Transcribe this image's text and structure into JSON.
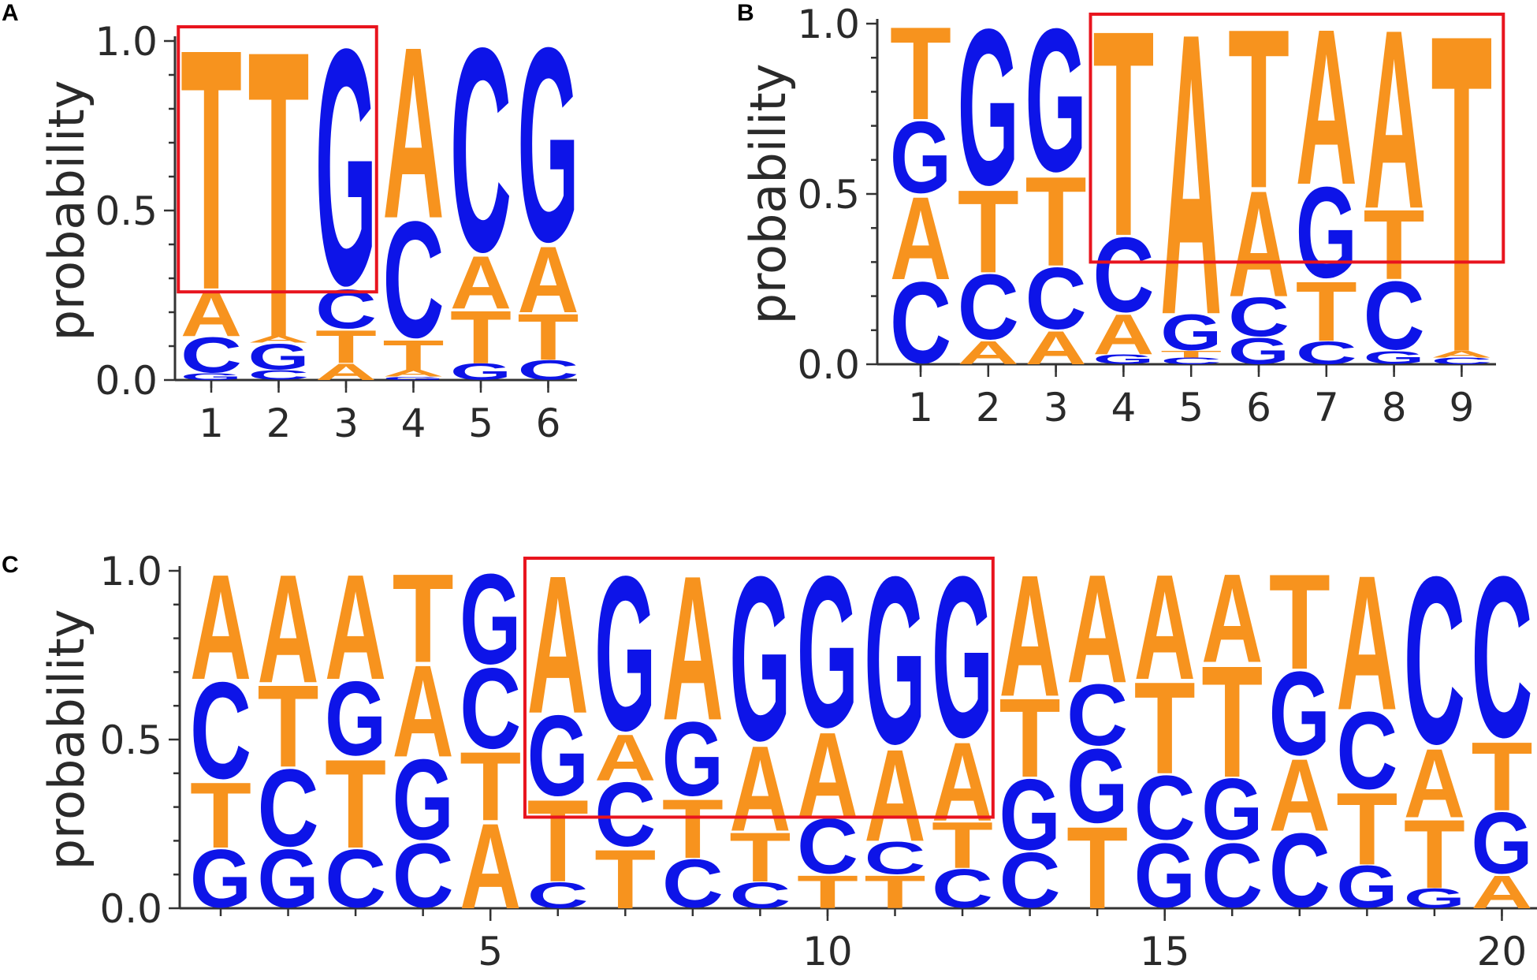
{
  "colors": {
    "A": "#f7931e",
    "T": "#f7931e",
    "G": "#0d14e8",
    "C": "#0d14e8",
    "highlight": "#e8141e"
  },
  "chart_data": [
    {
      "panel": "A",
      "type": "sequence_logo",
      "ylabel": "probability",
      "ylim": [
        0.0,
        1.0
      ],
      "yticks": [
        "0.0",
        "0.5",
        "1.0"
      ],
      "xticks": [
        "1",
        "2",
        "3",
        "4",
        "5",
        "6"
      ],
      "highlight": {
        "positions": [
          1,
          3
        ],
        "ymin": 0.26
      },
      "positions": [
        [
          [
            "G",
            0.02
          ],
          [
            "C",
            0.11
          ],
          [
            "A",
            0.14
          ],
          [
            "T",
            0.73
          ]
        ],
        [
          [
            "C",
            0.03
          ],
          [
            "G",
            0.08
          ],
          [
            "A",
            0.02
          ],
          [
            "T",
            0.87
          ]
        ],
        [
          [
            "A",
            0.05
          ],
          [
            "T",
            0.1
          ],
          [
            "C",
            0.12
          ],
          [
            "G",
            0.73
          ]
        ],
        [
          [
            "G",
            0.01
          ],
          [
            "A",
            0.02
          ],
          [
            "T",
            0.09
          ],
          [
            "C",
            0.36
          ],
          [
            "A",
            0.52
          ]
        ],
        [
          [
            "G",
            0.05
          ],
          [
            "T",
            0.16
          ],
          [
            "A",
            0.16
          ],
          [
            "C",
            0.63
          ]
        ],
        [
          [
            "C",
            0.06
          ],
          [
            "T",
            0.14
          ],
          [
            "A",
            0.2
          ],
          [
            "G",
            0.6
          ]
        ]
      ]
    },
    {
      "panel": "B",
      "type": "sequence_logo",
      "ylabel": "probability",
      "ylim": [
        0.0,
        1.0
      ],
      "yticks": [
        "0.0",
        "0.5",
        "1.0"
      ],
      "xticks": [
        "1",
        "2",
        "3",
        "4",
        "5",
        "6",
        "7",
        "8",
        "9"
      ],
      "highlight": {
        "positions": [
          4,
          9
        ],
        "ymin": 0.3
      },
      "positions": [
        [
          [
            "C",
            0.25
          ],
          [
            "A",
            0.25
          ],
          [
            "G",
            0.22
          ],
          [
            "T",
            0.28
          ]
        ],
        [
          [
            "A",
            0.07
          ],
          [
            "C",
            0.2
          ],
          [
            "T",
            0.25
          ],
          [
            "G",
            0.48
          ]
        ],
        [
          [
            "A",
            0.1
          ],
          [
            "C",
            0.19
          ],
          [
            "T",
            0.27
          ],
          [
            "G",
            0.44
          ]
        ],
        [
          [
            "G",
            0.03
          ],
          [
            "A",
            0.12
          ],
          [
            "C",
            0.23
          ],
          [
            "T",
            0.62
          ]
        ],
        [
          [
            "C",
            0.02
          ],
          [
            "T",
            0.02
          ],
          [
            "G",
            0.11
          ],
          [
            "A",
            0.85
          ]
        ],
        [
          [
            "G",
            0.08
          ],
          [
            "C",
            0.12
          ],
          [
            "A",
            0.32
          ],
          [
            "T",
            0.48
          ]
        ],
        [
          [
            "C",
            0.07
          ],
          [
            "T",
            0.18
          ],
          [
            "G",
            0.28
          ],
          [
            "A",
            0.47
          ]
        ],
        [
          [
            "G",
            0.04
          ],
          [
            "C",
            0.21
          ],
          [
            "T",
            0.21
          ],
          [
            "A",
            0.54
          ]
        ],
        [
          [
            "C",
            0.02
          ],
          [
            "A",
            0.02
          ],
          [
            "T",
            0.96
          ]
        ]
      ]
    },
    {
      "panel": "C",
      "type": "sequence_logo",
      "ylabel": "probability",
      "ylim": [
        0.0,
        1.0
      ],
      "yticks": [
        "0.0",
        "0.5",
        "1.0"
      ],
      "xticks": [
        "5",
        "10",
        "15",
        "20"
      ],
      "highlight": {
        "positions": [
          6,
          12
        ],
        "ymin": 0.27
      },
      "positions": [
        [
          [
            "G",
            0.18
          ],
          [
            "T",
            0.2
          ],
          [
            "C",
            0.3
          ],
          [
            "A",
            0.32
          ]
        ],
        [
          [
            "G",
            0.18
          ],
          [
            "C",
            0.24
          ],
          [
            "T",
            0.25
          ],
          [
            "A",
            0.33
          ]
        ],
        [
          [
            "C",
            0.18
          ],
          [
            "T",
            0.27
          ],
          [
            "G",
            0.23
          ],
          [
            "A",
            0.32
          ]
        ],
        [
          [
            "C",
            0.2
          ],
          [
            "G",
            0.25
          ],
          [
            "A",
            0.28
          ],
          [
            "T",
            0.27
          ]
        ],
        [
          [
            "A",
            0.26
          ],
          [
            "T",
            0.21
          ],
          [
            "C",
            0.25
          ],
          [
            "G",
            0.28
          ]
        ],
        [
          [
            "C",
            0.08
          ],
          [
            "T",
            0.25
          ],
          [
            "G",
            0.25
          ],
          [
            "A",
            0.42
          ]
        ],
        [
          [
            "T",
            0.18
          ],
          [
            "C",
            0.2
          ],
          [
            "A",
            0.14
          ],
          [
            "G",
            0.48
          ]
        ],
        [
          [
            "C",
            0.15
          ],
          [
            "T",
            0.18
          ],
          [
            "G",
            0.23
          ],
          [
            "A",
            0.44
          ]
        ],
        [
          [
            "C",
            0.08
          ],
          [
            "T",
            0.15
          ],
          [
            "A",
            0.26
          ],
          [
            "G",
            0.51
          ]
        ],
        [
          [
            "T",
            0.1
          ],
          [
            "C",
            0.17
          ],
          [
            "A",
            0.26
          ],
          [
            "G",
            0.47
          ]
        ],
        [
          [
            "T",
            0.1
          ],
          [
            "C",
            0.1
          ],
          [
            "A",
            0.28
          ],
          [
            "G",
            0.52
          ]
        ],
        [
          [
            "C",
            0.12
          ],
          [
            "T",
            0.14
          ],
          [
            "A",
            0.24
          ],
          [
            "G",
            0.5
          ]
        ],
        [
          [
            "C",
            0.17
          ],
          [
            "G",
            0.22
          ],
          [
            "T",
            0.24
          ],
          [
            "A",
            0.37
          ]
        ],
        [
          [
            "T",
            0.25
          ],
          [
            "G",
            0.23
          ],
          [
            "C",
            0.19
          ],
          [
            "A",
            0.33
          ]
        ],
        [
          [
            "G",
            0.2
          ],
          [
            "C",
            0.2
          ],
          [
            "T",
            0.28
          ],
          [
            "A",
            0.32
          ]
        ],
        [
          [
            "C",
            0.2
          ],
          [
            "G",
            0.19
          ],
          [
            "T",
            0.34
          ],
          [
            "A",
            0.27
          ]
        ],
        [
          [
            "C",
            0.23
          ],
          [
            "A",
            0.22
          ],
          [
            "G",
            0.26
          ],
          [
            "T",
            0.29
          ]
        ],
        [
          [
            "G",
            0.13
          ],
          [
            "T",
            0.22
          ],
          [
            "C",
            0.24
          ],
          [
            "A",
            0.41
          ]
        ],
        [
          [
            "G",
            0.06
          ],
          [
            "T",
            0.21
          ],
          [
            "A",
            0.21
          ],
          [
            "C",
            0.52
          ]
        ],
        [
          [
            "A",
            0.1
          ],
          [
            "G",
            0.19
          ],
          [
            "T",
            0.21
          ],
          [
            "C",
            0.5
          ]
        ]
      ]
    }
  ]
}
